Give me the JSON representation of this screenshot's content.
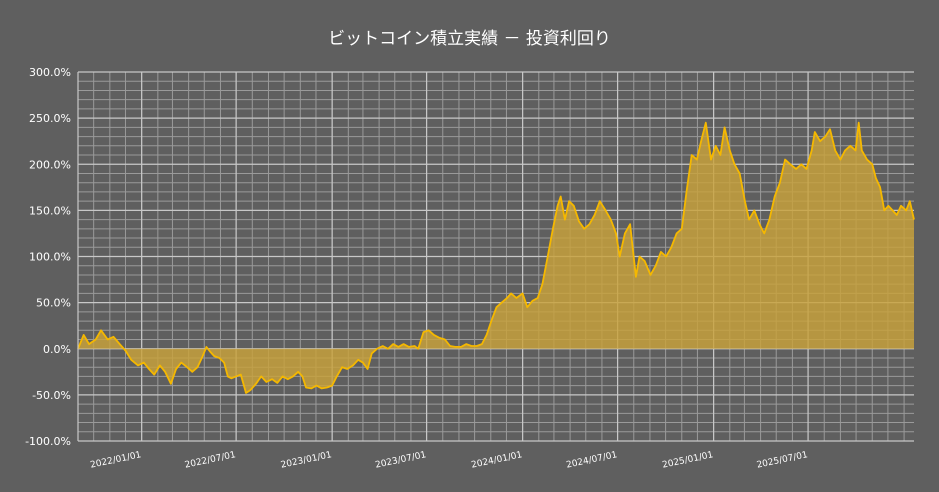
{
  "chart_data": {
    "type": "area",
    "title": "ビットコイン積立実績 － 投資利回り",
    "xlabel": "",
    "ylabel": "",
    "ylim": [
      -100,
      300
    ],
    "y_ticks": [
      "300.0%",
      "250.0%",
      "200.0%",
      "150.0%",
      "100.0%",
      "50.0%",
      "0.0%",
      "-50.0%",
      "-100.0%"
    ],
    "y_tick_values": [
      300,
      250,
      200,
      150,
      100,
      50,
      0,
      -50,
      -100
    ],
    "x_ticks": [
      "2022/01/01",
      "2022/07/01",
      "2023/01/01",
      "2023/07/01",
      "2024/01/01",
      "2024/07/01",
      "2025/01/01",
      "2025/07/01"
    ],
    "x_tick_dates": [
      "2022-01-01",
      "2022-07-01",
      "2023-01-01",
      "2023-07-01",
      "2024-01-01",
      "2024-07-01",
      "2025-01-01",
      "2025-07-01"
    ],
    "x_range": [
      "2021-09-01",
      "2026-01-20"
    ],
    "grid": true,
    "colors": {
      "line": "#f5b800",
      "fill": "#c9a23b",
      "grid": "#c8c8c8",
      "background": "#5f5f5f",
      "text": "#ffffff"
    },
    "series": [
      {
        "points": [
          [
            "2021-09-01",
            0
          ],
          [
            "2021-09-12",
            15
          ],
          [
            "2021-09-22",
            5
          ],
          [
            "2021-10-05",
            10
          ],
          [
            "2021-10-15",
            20
          ],
          [
            "2021-10-28",
            10
          ],
          [
            "2021-11-08",
            13
          ],
          [
            "2021-11-20",
            5
          ],
          [
            "2021-12-01",
            -2
          ],
          [
            "2021-12-12",
            -12
          ],
          [
            "2021-12-25",
            -18
          ],
          [
            "2022-01-05",
            -15
          ],
          [
            "2022-01-15",
            -22
          ],
          [
            "2022-01-25",
            -28
          ],
          [
            "2022-02-05",
            -18
          ],
          [
            "2022-02-15",
            -25
          ],
          [
            "2022-02-26",
            -38
          ],
          [
            "2022-03-08",
            -22
          ],
          [
            "2022-03-18",
            -15
          ],
          [
            "2022-03-29",
            -20
          ],
          [
            "2022-04-08",
            -25
          ],
          [
            "2022-04-18",
            -20
          ],
          [
            "2022-04-28",
            -8
          ],
          [
            "2022-05-05",
            2
          ],
          [
            "2022-05-12",
            -3
          ],
          [
            "2022-05-20",
            -8
          ],
          [
            "2022-05-30",
            -10
          ],
          [
            "2022-06-08",
            -15
          ],
          [
            "2022-06-15",
            -30
          ],
          [
            "2022-06-22",
            -32
          ],
          [
            "2022-07-01",
            -30
          ],
          [
            "2022-07-10",
            -28
          ],
          [
            "2022-07-20",
            -48
          ],
          [
            "2022-07-28",
            -45
          ],
          [
            "2022-08-08",
            -38
          ],
          [
            "2022-08-18",
            -30
          ],
          [
            "2022-08-28",
            -36
          ],
          [
            "2022-09-08",
            -33
          ],
          [
            "2022-09-18",
            -37
          ],
          [
            "2022-09-28",
            -30
          ],
          [
            "2022-10-08",
            -33
          ],
          [
            "2022-10-18",
            -30
          ],
          [
            "2022-10-28",
            -25
          ],
          [
            "2022-11-05",
            -30
          ],
          [
            "2022-11-12",
            -42
          ],
          [
            "2022-11-22",
            -43
          ],
          [
            "2022-12-02",
            -40
          ],
          [
            "2022-12-12",
            -43
          ],
          [
            "2022-12-22",
            -42
          ],
          [
            "2023-01-01",
            -40
          ],
          [
            "2023-01-10",
            -30
          ],
          [
            "2023-01-20",
            -20
          ],
          [
            "2023-01-30",
            -22
          ],
          [
            "2023-02-10",
            -18
          ],
          [
            "2023-02-20",
            -12
          ],
          [
            "2023-03-01",
            -15
          ],
          [
            "2023-03-10",
            -22
          ],
          [
            "2023-03-18",
            -5
          ],
          [
            "2023-03-28",
            0
          ],
          [
            "2023-04-08",
            3
          ],
          [
            "2023-04-18",
            0
          ],
          [
            "2023-04-28",
            5
          ],
          [
            "2023-05-08",
            2
          ],
          [
            "2023-05-18",
            5
          ],
          [
            "2023-05-28",
            2
          ],
          [
            "2023-06-08",
            3
          ],
          [
            "2023-06-15",
            0
          ],
          [
            "2023-06-25",
            18
          ],
          [
            "2023-07-05",
            20
          ],
          [
            "2023-07-15",
            15
          ],
          [
            "2023-07-25",
            12
          ],
          [
            "2023-08-05",
            10
          ],
          [
            "2023-08-15",
            3
          ],
          [
            "2023-08-25",
            2
          ],
          [
            "2023-09-05",
            2
          ],
          [
            "2023-09-15",
            5
          ],
          [
            "2023-09-25",
            3
          ],
          [
            "2023-10-05",
            3
          ],
          [
            "2023-10-15",
            5
          ],
          [
            "2023-10-24",
            15
          ],
          [
            "2023-11-02",
            30
          ],
          [
            "2023-11-12",
            45
          ],
          [
            "2023-11-22",
            50
          ],
          [
            "2023-12-02",
            55
          ],
          [
            "2023-12-10",
            60
          ],
          [
            "2023-12-20",
            55
          ],
          [
            "2024-01-01",
            60
          ],
          [
            "2024-01-10",
            45
          ],
          [
            "2024-01-20",
            52
          ],
          [
            "2024-01-30",
            55
          ],
          [
            "2024-02-08",
            70
          ],
          [
            "2024-02-18",
            100
          ],
          [
            "2024-02-28",
            130
          ],
          [
            "2024-03-08",
            155
          ],
          [
            "2024-03-14",
            165
          ],
          [
            "2024-03-22",
            140
          ],
          [
            "2024-03-30",
            160
          ],
          [
            "2024-04-08",
            155
          ],
          [
            "2024-04-18",
            138
          ],
          [
            "2024-04-28",
            130
          ],
          [
            "2024-05-08",
            135
          ],
          [
            "2024-05-18",
            145
          ],
          [
            "2024-05-28",
            160
          ],
          [
            "2024-06-08",
            150
          ],
          [
            "2024-06-18",
            140
          ],
          [
            "2024-06-28",
            125
          ],
          [
            "2024-07-05",
            100
          ],
          [
            "2024-07-15",
            125
          ],
          [
            "2024-07-25",
            135
          ],
          [
            "2024-08-05",
            78
          ],
          [
            "2024-08-12",
            100
          ],
          [
            "2024-08-22",
            95
          ],
          [
            "2024-09-02",
            80
          ],
          [
            "2024-09-12",
            90
          ],
          [
            "2024-09-22",
            105
          ],
          [
            "2024-10-02",
            100
          ],
          [
            "2024-10-12",
            110
          ],
          [
            "2024-10-22",
            125
          ],
          [
            "2024-11-01",
            130
          ],
          [
            "2024-11-10",
            170
          ],
          [
            "2024-11-20",
            210
          ],
          [
            "2024-11-30",
            205
          ],
          [
            "2024-12-08",
            225
          ],
          [
            "2024-12-17",
            245
          ],
          [
            "2024-12-27",
            205
          ],
          [
            "2025-01-05",
            220
          ],
          [
            "2025-01-14",
            210
          ],
          [
            "2025-01-22",
            240
          ],
          [
            "2025-02-01",
            215
          ],
          [
            "2025-02-10",
            200
          ],
          [
            "2025-02-20",
            190
          ],
          [
            "2025-03-02",
            160
          ],
          [
            "2025-03-10",
            140
          ],
          [
            "2025-03-20",
            150
          ],
          [
            "2025-03-30",
            135
          ],
          [
            "2025-04-08",
            125
          ],
          [
            "2025-04-18",
            140
          ],
          [
            "2025-04-28",
            165
          ],
          [
            "2025-05-08",
            180
          ],
          [
            "2025-05-18",
            205
          ],
          [
            "2025-05-28",
            200
          ],
          [
            "2025-06-08",
            195
          ],
          [
            "2025-06-18",
            200
          ],
          [
            "2025-06-28",
            195
          ],
          [
            "2025-07-08",
            215
          ],
          [
            "2025-07-14",
            235
          ],
          [
            "2025-07-24",
            225
          ],
          [
            "2025-08-03",
            230
          ],
          [
            "2025-08-12",
            238
          ],
          [
            "2025-08-22",
            215
          ],
          [
            "2025-09-01",
            205
          ],
          [
            "2025-09-10",
            215
          ],
          [
            "2025-09-20",
            220
          ],
          [
            "2025-09-30",
            215
          ],
          [
            "2025-10-06",
            245
          ],
          [
            "2025-10-12",
            215
          ],
          [
            "2025-10-22",
            205
          ],
          [
            "2025-11-01",
            200
          ],
          [
            "2025-11-08",
            185
          ],
          [
            "2025-11-16",
            175
          ],
          [
            "2025-11-24",
            150
          ],
          [
            "2025-12-02",
            155
          ],
          [
            "2025-12-10",
            150
          ],
          [
            "2025-12-18",
            145
          ],
          [
            "2025-12-26",
            155
          ],
          [
            "2026-01-05",
            150
          ],
          [
            "2026-01-12",
            160
          ],
          [
            "2026-01-20",
            140
          ]
        ]
      }
    ]
  }
}
